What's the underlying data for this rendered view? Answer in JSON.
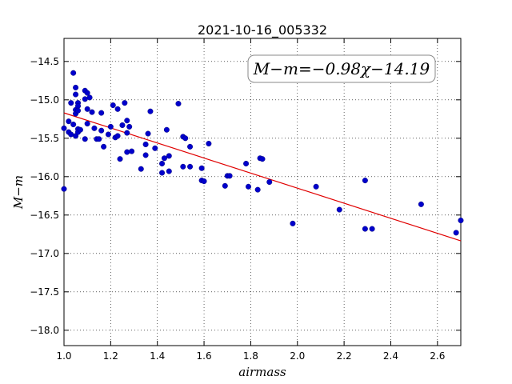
{
  "chart_data": {
    "type": "scatter",
    "title": "2021-10-16_005332",
    "xlabel": "airmass",
    "ylabel": "M−m",
    "xlim": [
      1.0,
      2.7
    ],
    "ylim": [
      -18.2,
      -14.2
    ],
    "ylim_note": "y axis inverted (more negative values at bottom)",
    "x_ticks": [
      "1.0",
      "1.2",
      "1.4",
      "1.6",
      "1.8",
      "2.0",
      "2.2",
      "2.4",
      "2.6"
    ],
    "y_ticks": [
      "−14.5",
      "−15.0",
      "−15.5",
      "−16.0",
      "−16.5",
      "−17.0",
      "−17.5",
      "−18.0"
    ],
    "grid": true,
    "annotation": "M−m=−0.98χ−14.19",
    "annotation_placement": "top-right",
    "colors": {
      "points": "#0000cc",
      "fit_line": "#e00000"
    },
    "fit": {
      "slope": -0.98,
      "intercept": -14.19
    },
    "series": [
      {
        "values": [
          [
            1.0,
            -16.16
          ],
          [
            1.0,
            -15.37
          ],
          [
            1.02,
            -15.28
          ],
          [
            1.02,
            -15.42
          ],
          [
            1.03,
            -15.04
          ],
          [
            1.03,
            -15.45
          ],
          [
            1.04,
            -14.65
          ],
          [
            1.04,
            -15.32
          ],
          [
            1.05,
            -14.84
          ],
          [
            1.05,
            -14.93
          ],
          [
            1.05,
            -15.13
          ],
          [
            1.05,
            -15.18
          ],
          [
            1.05,
            -15.47
          ],
          [
            1.06,
            -15.04
          ],
          [
            1.06,
            -15.08
          ],
          [
            1.06,
            -15.14
          ],
          [
            1.06,
            -15.38
          ],
          [
            1.06,
            -15.42
          ],
          [
            1.07,
            -15.39
          ],
          [
            1.09,
            -14.88
          ],
          [
            1.09,
            -14.99
          ],
          [
            1.09,
            -15.51
          ],
          [
            1.1,
            -15.31
          ],
          [
            1.1,
            -15.12
          ],
          [
            1.1,
            -14.91
          ],
          [
            1.11,
            -14.97
          ],
          [
            1.12,
            -15.16
          ],
          [
            1.13,
            -15.37
          ],
          [
            1.14,
            -15.51
          ],
          [
            1.15,
            -15.51
          ],
          [
            1.16,
            -15.4
          ],
          [
            1.16,
            -15.17
          ],
          [
            1.17,
            -15.61
          ],
          [
            1.19,
            -15.45
          ],
          [
            1.2,
            -15.35
          ],
          [
            1.21,
            -15.07
          ],
          [
            1.22,
            -15.49
          ],
          [
            1.23,
            -15.12
          ],
          [
            1.23,
            -15.47
          ],
          [
            1.24,
            -15.77
          ],
          [
            1.25,
            -15.33
          ],
          [
            1.26,
            -15.04
          ],
          [
            1.27,
            -15.27
          ],
          [
            1.27,
            -15.43
          ],
          [
            1.27,
            -15.68
          ],
          [
            1.28,
            -15.35
          ],
          [
            1.29,
            -15.67
          ],
          [
            1.33,
            -15.9
          ],
          [
            1.35,
            -15.72
          ],
          [
            1.35,
            -15.58
          ],
          [
            1.36,
            -15.44
          ],
          [
            1.37,
            -15.15
          ],
          [
            1.39,
            -15.63
          ],
          [
            1.42,
            -15.95
          ],
          [
            1.42,
            -15.83
          ],
          [
            1.43,
            -15.76
          ],
          [
            1.44,
            -15.39
          ],
          [
            1.45,
            -15.73
          ],
          [
            1.45,
            -15.93
          ],
          [
            1.49,
            -15.05
          ],
          [
            1.51,
            -15.87
          ],
          [
            1.51,
            -15.48
          ],
          [
            1.52,
            -15.5
          ],
          [
            1.54,
            -15.87
          ],
          [
            1.54,
            -15.61
          ],
          [
            1.59,
            -15.89
          ],
          [
            1.59,
            -16.05
          ],
          [
            1.6,
            -16.06
          ],
          [
            1.62,
            -15.57
          ],
          [
            1.69,
            -16.12
          ],
          [
            1.7,
            -15.99
          ],
          [
            1.71,
            -15.99
          ],
          [
            1.78,
            -15.83
          ],
          [
            1.79,
            -16.13
          ],
          [
            1.83,
            -16.17
          ],
          [
            1.84,
            -15.76
          ],
          [
            1.85,
            -15.77
          ],
          [
            1.88,
            -16.07
          ],
          [
            1.98,
            -16.61
          ],
          [
            2.08,
            -16.13
          ],
          [
            2.18,
            -16.43
          ],
          [
            2.29,
            -16.05
          ],
          [
            2.29,
            -16.68
          ],
          [
            2.32,
            -16.68
          ],
          [
            2.53,
            -16.36
          ],
          [
            2.68,
            -16.73
          ],
          [
            2.7,
            -16.57
          ]
        ]
      }
    ]
  }
}
